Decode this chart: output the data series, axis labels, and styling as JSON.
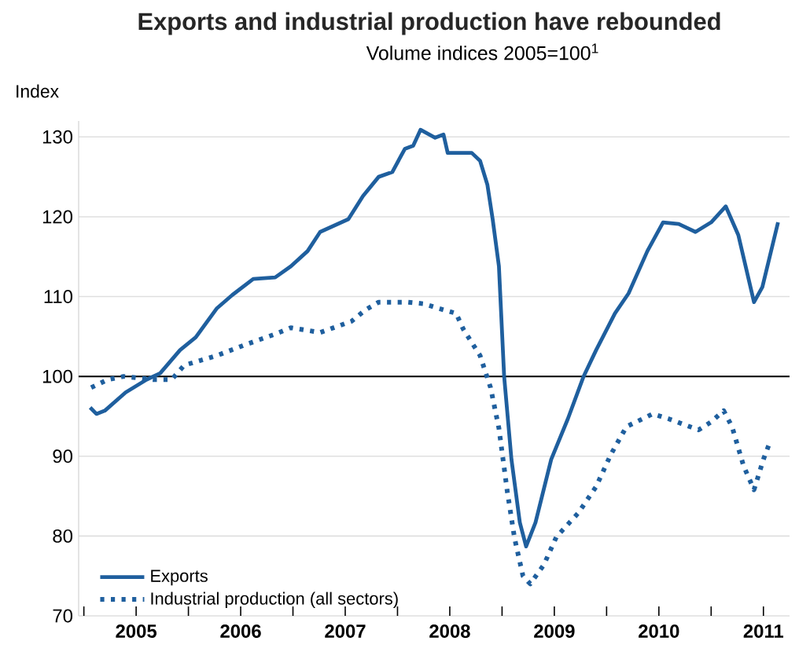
{
  "chart_data": {
    "type": "line",
    "title": "Exports and industrial production have rebounded",
    "subtitle": "Volume indices 2005=100$^{1}$",
    "ylabel": "Index",
    "x": [
      2005.06,
      2005.12,
      2005.2,
      2005.4,
      2005.6,
      2005.73,
      2005.92,
      2006.07,
      2006.27,
      2006.42,
      2006.62,
      2006.83,
      2006.98,
      2007.14,
      2007.26,
      2007.53,
      2007.67,
      2007.82,
      2007.95,
      2008.07,
      2008.15,
      2008.22,
      2008.36,
      2008.44,
      2008.48,
      2008.71,
      2008.79,
      2008.86,
      2008.91,
      2008.97,
      2009.02,
      2009.09,
      2009.17,
      2009.23,
      2009.32,
      2009.47,
      2009.63,
      2009.78,
      2009.9,
      2010.08,
      2010.21,
      2010.39,
      2010.54,
      2010.69,
      2010.85,
      2011.0,
      2011.14,
      2011.26,
      2011.41,
      2011.49,
      2011.64
    ],
    "series": [
      {
        "name": "Exports",
        "color": "#1f5f9e",
        "line_style": "solid",
        "values": [
          96.1,
          95.3,
          95.7,
          98,
          99.6,
          100.4,
          103.3,
          104.9,
          108.5,
          110.2,
          112.2,
          112.4,
          113.8,
          115.7,
          118.1,
          119.7,
          122.6,
          125,
          125.6,
          128.5,
          128.9,
          130.9,
          129.9,
          130.3,
          128,
          128,
          127,
          124,
          119.7,
          113.8,
          100,
          89.6,
          81.7,
          78.7,
          81.7,
          89.6,
          94.7,
          100,
          103.3,
          107.9,
          110.4,
          115.7,
          119.3,
          119.1,
          118.1,
          119.3,
          121.3,
          117.7,
          109.3,
          111.2,
          119.3
        ]
      },
      {
        "name": "Industrial production (all sectors)",
        "color": "#1f5f9e",
        "line_style": "dotted",
        "x": [
          2005.07,
          2005.23,
          2005.38,
          2005.66,
          2005.84,
          2005.96,
          2006.27,
          2006.53,
          2006.83,
          2006.98,
          2007.26,
          2007.56,
          2007.69,
          2007.82,
          2008.1,
          2008.25,
          2008.4,
          2008.56,
          2008.63,
          2008.79,
          2008.89,
          2008.97,
          2009.05,
          2009.12,
          2009.2,
          2009.27,
          2009.4,
          2009.52,
          2009.73,
          2009.9,
          2010.04,
          2010.19,
          2010.44,
          2010.59,
          2010.88,
          2011.0,
          2011.12,
          2011.2,
          2011.31,
          2011.41,
          2011.5,
          2011.56
        ],
        "values": [
          98.6,
          99.6,
          100,
          99.6,
          99.6,
          101.4,
          102.6,
          103.9,
          105.3,
          106.1,
          105.5,
          106.9,
          108.3,
          109.3,
          109.3,
          109.1,
          108.5,
          107.9,
          105.9,
          102.6,
          98.6,
          93.5,
          85.6,
          79.7,
          75,
          74,
          76.4,
          79.9,
          82.9,
          86.2,
          90.2,
          93.7,
          95.3,
          94.7,
          93.3,
          94.3,
          95.7,
          93.7,
          88.8,
          85.8,
          89.6,
          91.7
        ]
      }
    ],
    "xlim": [
      2004.95,
      2011.75
    ],
    "xticks": [
      {
        "value": 2005,
        "label": null
      },
      {
        "value": 2005.5,
        "label": "2005"
      },
      {
        "value": 2006,
        "label": null
      },
      {
        "value": 2006.5,
        "label": "2006"
      },
      {
        "value": 2007,
        "label": null
      },
      {
        "value": 2007.5,
        "label": "2007"
      },
      {
        "value": 2008,
        "label": null
      },
      {
        "value": 2008.5,
        "label": "2008"
      },
      {
        "value": 2009,
        "label": null
      },
      {
        "value": 2009.5,
        "label": "2009"
      },
      {
        "value": 2010,
        "label": null
      },
      {
        "value": 2010.5,
        "label": "2010"
      },
      {
        "value": 2011,
        "label": null
      },
      {
        "value": 2011.5,
        "label": "2011"
      }
    ],
    "ylim": [
      70,
      132
    ],
    "yticks": [
      70,
      80,
      90,
      100,
      110,
      120,
      130
    ],
    "grid": "y",
    "legend": "bottom left",
    "ref_lines": [
      {
        "axis": "y",
        "value": 100,
        "color": "#000000"
      }
    ]
  }
}
